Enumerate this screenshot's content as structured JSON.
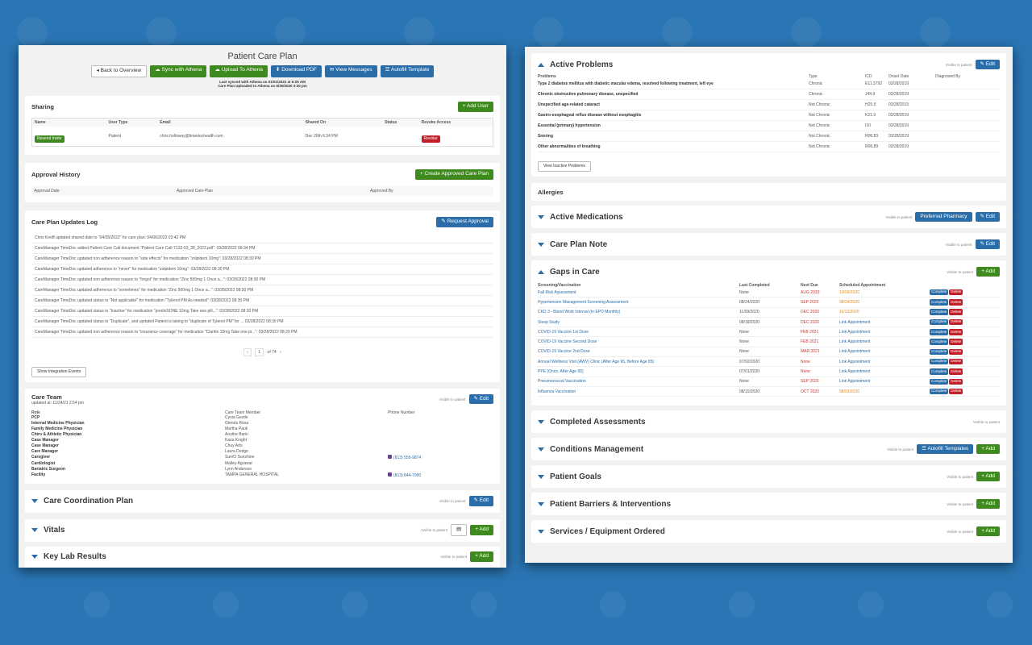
{
  "colors": {
    "background": "#2a76b4",
    "green": "#3f8a1e",
    "blue": "#2a6da8",
    "red": "#c0202a"
  },
  "left": {
    "title": "Patient Care Plan",
    "toolbar": {
      "back": "Back to Overview",
      "sync": "Sync with Athena",
      "upload": "Upload To Athena",
      "download": "Download PDF",
      "messages": "View Messages",
      "autofill": "Autofill Template"
    },
    "sync_note1": "Last synced with Athena on 01/01/2022 at 6:25 AM",
    "sync_note2": "Care Plan Uploaded to Athena on 6/30/2020 3:30 pm",
    "sharing": {
      "title": "Sharing",
      "add_user": "+ Add User",
      "headers": [
        "Name",
        "User Type",
        "Email",
        "Shared On",
        "Status",
        "Revoke Access"
      ],
      "row": {
        "resend": "Resend Invite",
        "type": "Patient",
        "email": "chris.holloway@timedochealth.com",
        "shared_on": "Dec 20th 6:34 PM",
        "status": "",
        "revoke": "Revoke"
      }
    },
    "approval": {
      "title": "Approval History",
      "create": "+ Create Approved Care Plan",
      "headers": [
        "Approval Date",
        "Approved Care Plan",
        "Approved By"
      ]
    },
    "log": {
      "title": "Care Plan Updates Log",
      "request": "Request Approval",
      "rows": [
        "Chris Kreiff updated shared date to \"04/05/2022\" for care plan: 04/06/2022 03:42 PM",
        "CareManager TimeDoc added Patient Care Call document \"Patient Care Call-7132-03_28_2022.pdf\": 03/28/2022 08:34 PM",
        "CareManager TimeDoc updated non adherence reason to \"side effects\" for medication \"zolpidem 10mg\": 03/28/2022 08:30 PM",
        "CareManager TimeDoc updated adherence to \"never\" for medication \"zolpidem 10mg\": 03/28/2022 08:30 PM",
        "CareManager TimeDoc updated non adherence reason to \"forgot\" for medication \"Zinc 500mg 1 Once a...\": 03/28/2022 08:30 PM",
        "CareManager TimeDoc updated adherence to \"sometimes\" for medication \"Zinc 500mg 1 Once a...\": 03/28/2022 08:30 PM",
        "CareManager TimeDoc updated status to \"Not applicable\" for medication \"Tylenol PM As needed\": 03/28/2022 08:30 PM",
        "CareManager TimeDoc updated status to \"Inactive\" for medication \"predniSONE 10mg Take one pill...\": 03/28/2022 08:30 PM",
        "CareManager TimeDoc updated status to \"Duplicate\", and updated Patient is taking to \"duplicate of Tylenol PM\" for ... 03/28/2022 08:30 PM",
        "CareManager TimeDoc updated non adherence reason to \"insurance coverage\" for medication \"Claritin 10mg Take one pi...\": 03/28/2022 08:29 PM"
      ],
      "pager": {
        "current": "1",
        "of": "of 74"
      },
      "integration": "Show Integration Events"
    },
    "care_team": {
      "title": "Care Team",
      "updated": "updated at: 11/24/21 2:54 pm",
      "visible": "Visible to patient",
      "edit": "Edit",
      "headers": [
        "Role",
        "Care Team Member",
        "Phone Number"
      ],
      "rows": [
        {
          "role": "PCP",
          "member": "Cynia Gestle",
          "phone": ""
        },
        {
          "role": "Internal Medicine Physician",
          "member": "Glenda Rosa",
          "phone": ""
        },
        {
          "role": "Family Medicine Physician",
          "member": "Martha Pauli",
          "phone": ""
        },
        {
          "role": "Chiro & Athletic Physician",
          "member": "Anuthe Barin",
          "phone": ""
        },
        {
          "role": "Case Manager",
          "member": "Kaza Knight",
          "phone": ""
        },
        {
          "role": "Case Manager",
          "member": "Chuy Arts",
          "phone": ""
        },
        {
          "role": "Care Manager",
          "member": "Laura Dodge",
          "phone": ""
        },
        {
          "role": "Caregiver",
          "member": "Sun/O Sunshine",
          "phone": "(813) 555-9874"
        },
        {
          "role": "Cardiologist",
          "member": "Malley Agrawal",
          "phone": ""
        },
        {
          "role": "Bariatric Surgeon",
          "member": "Lynn Anderson",
          "phone": ""
        },
        {
          "role": "Facility",
          "member": "TAMPA GENERAL HOSPITAL",
          "phone": "(813) 844-7000"
        }
      ]
    },
    "ccp": {
      "title": "Care Coordination Plan",
      "visible": "Visible to patient",
      "edit": "Edit"
    },
    "vitals": {
      "title": "Vitals",
      "visible": "Visible to patient",
      "add": "+ Add"
    },
    "labs": {
      "title": "Key Lab Results",
      "visible": "Visible to patient",
      "add": "+ Add"
    }
  },
  "right": {
    "problems": {
      "title": "Active Problems",
      "visible": "Visible to patient",
      "edit": "Edit",
      "headers": [
        "Problems",
        "Type",
        "ICD",
        "Onset Date",
        "Diagnosed By"
      ],
      "rows": [
        {
          "name": "Type 2 diabetes mellitus with diabetic macular edema, resolved following treatment, left eye",
          "type": "Chronic",
          "icd": "E11.3792",
          "onset": "03/28/2019"
        },
        {
          "name": "Chronic obstructive pulmonary disease, unspecified",
          "type": "Chronic",
          "icd": "J44.9",
          "onset": "03/28/2019"
        },
        {
          "name": "Unspecified age-related cataract",
          "type": "Not Chronic",
          "icd": "H25.9",
          "onset": "03/28/2019"
        },
        {
          "name": "Gastro-esophageal reflux disease without esophagitis",
          "type": "Not Chronic",
          "icd": "K21.9",
          "onset": "03/28/2019"
        },
        {
          "name": "Essential (primary) hypertension",
          "type": "Not Chronic",
          "icd": "I10",
          "onset": "03/28/2019"
        },
        {
          "name": "Snoring",
          "type": "Not Chronic",
          "icd": "R06.83",
          "onset": "03/28/2019"
        },
        {
          "name": "Other abnormalities of breathing",
          "type": "Not Chronic",
          "icd": "R06.89",
          "onset": "03/28/2019"
        }
      ],
      "view_inactive": "View Inactive Problems"
    },
    "allergies": {
      "title": "Allergies"
    },
    "meds": {
      "title": "Active Medications",
      "visible": "Visible to patient",
      "pharmacy": "Preferred Pharmacy",
      "edit": "Edit"
    },
    "note": {
      "title": "Care Plan Note",
      "visible": "Visible to patient",
      "edit": "Edit"
    },
    "gaps": {
      "title": "Gaps in Care",
      "visible": "Visible to patient",
      "add": "+ Add",
      "headers": [
        "Screening/Vaccination",
        "Last Completed",
        "Next Due",
        "Scheduled Appointment"
      ],
      "complete": "Complete",
      "delete": "Delete",
      "rows": [
        {
          "name": "Fall Risk Assessment",
          "last": "None",
          "due": "AUG 2020",
          "appt": "10/09/2020"
        },
        {
          "name": "Hypertension Management Screening Assessment",
          "last": "08/24/2020",
          "due": "SEP 2020",
          "appt": "08/24/2020"
        },
        {
          "name": "CKD 3 - Blood Work Interval (In EPO Monthly)",
          "last": "11/09/2020",
          "due": "DEC 2020",
          "appt": "11/13/2020"
        },
        {
          "name": "Sleep Study",
          "last": "08/18/2020",
          "due": "DEC 2020",
          "appt": "Link Appointment"
        },
        {
          "name": "COVID-19 Vaccine 1st Dose",
          "last": "None",
          "due": "FEB 2021",
          "appt": "Link Appointment"
        },
        {
          "name": "COVID-19 Vaccine Second Dose",
          "last": "None",
          "due": "FEB 2021",
          "appt": "Link Appointment"
        },
        {
          "name": "COVID-19 Vaccine 2nd Dose",
          "last": "None",
          "due": "MAR 2021",
          "appt": "Link Appointment"
        },
        {
          "name": "Annual Wellness Visit (AWV) Clinic (After Age 65, Before Age 85)",
          "last": "07/02/2020",
          "due": "None",
          "appt": "Link Appointment"
        },
        {
          "name": "PPE (Once, After Age 65)",
          "last": "07/01/2020",
          "due": "None",
          "appt": "Link Appointment"
        },
        {
          "name": "Pneumococcal Vaccination",
          "last": "None",
          "due": "SEP 2020",
          "appt": "Link Appointment"
        },
        {
          "name": "Influenza Vaccination",
          "last": "08/15/2020",
          "due": "OCT 2020",
          "appt": "08/01/2020"
        }
      ]
    },
    "assessments": {
      "title": "Completed Assessments",
      "visible": "Visible to patient"
    },
    "conditions": {
      "title": "Conditions Management",
      "visible": "Visible to patient",
      "autofill": "Autofill Templates",
      "add": "+ Add"
    },
    "goals": {
      "title": "Patient Goals",
      "visible": "Visible to patient",
      "add": "+ Add"
    },
    "barriers": {
      "title": "Patient Barriers & Interventions",
      "visible": "Visible to patient",
      "add": "+ Add"
    },
    "services": {
      "title": "Services / Equipment Ordered",
      "visible": "Visible to patient",
      "add": "+ Add"
    }
  }
}
